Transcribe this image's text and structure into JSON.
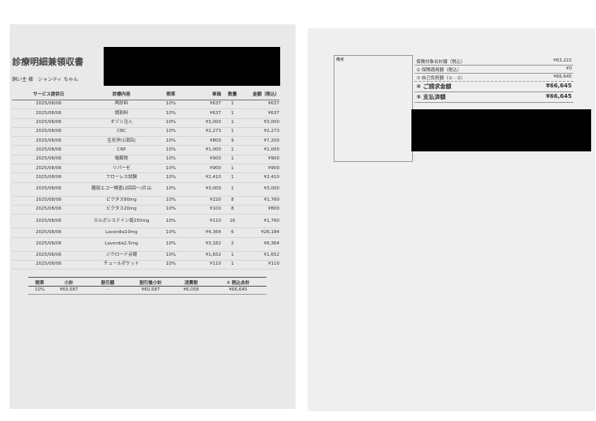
{
  "header": {
    "title": "診療明細兼領収書",
    "customer": "飼い主 様　シャンティ ちゃん"
  },
  "table": {
    "columns": [
      "サービス提供日",
      "診療内容",
      "税率",
      "単価",
      "数量",
      "金額（税込）"
    ],
    "rows": [
      [
        "2025/08/06",
        "再診料",
        "10%",
        "¥637",
        "1",
        "¥637"
      ],
      [
        "2025/08/06",
        "調剤料",
        "10%",
        "¥637",
        "1",
        "¥637"
      ],
      [
        "2025/08/06",
        "オゾン注入",
        "10%",
        "¥3,000",
        "1",
        "¥3,000"
      ],
      [
        "2025/08/06",
        "CBC",
        "10%",
        "¥2,273",
        "1",
        "¥2,273"
      ],
      [
        "2025/08/06",
        "生化学(1項目)",
        "10%",
        "¥800",
        "9",
        "¥7,200"
      ],
      [
        "2025/08/06",
        "CRP",
        "10%",
        "¥1,000",
        "1",
        "¥1,000"
      ],
      [
        "2025/08/06",
        "電解質",
        "10%",
        "¥900",
        "1",
        "¥900"
      ],
      [
        "2025/08/06",
        "リパーゼ",
        "10%",
        "¥900",
        "1",
        "¥900"
      ],
      [
        "2025/08/06",
        "フローレス試験",
        "10%",
        "¥2,410",
        "1",
        "¥2,410"
      ],
      [
        "2025/08/06",
        "腹部エコー検査(2回目～)片山",
        "10%",
        "¥3,000",
        "1",
        "¥3,000"
      ],
      [
        "2025/08/06",
        "ビクタス80mg",
        "10%",
        "¥220",
        "8",
        "¥1,760"
      ],
      [
        "2025/08/06",
        "ビクタス20mg",
        "10%",
        "¥100",
        "8",
        "¥800"
      ],
      [
        "2025/08/06",
        "カルボシステイン錠250mg",
        "10%",
        "¥110",
        "16",
        "¥1,760"
      ],
      [
        "2025/08/06",
        "Laverdia10mg",
        "10%",
        "¥4,364",
        "6",
        "¥26,184"
      ],
      [
        "2025/08/06",
        "Laverdia2.5mg",
        "10%",
        "¥3,182",
        "2",
        "¥6,364"
      ],
      [
        "2025/08/06",
        "ジクロード点眼",
        "10%",
        "¥1,652",
        "1",
        "¥1,652"
      ],
      [
        "2025/08/06",
        "チュールポケット",
        "10%",
        "¥110",
        "1",
        "¥110"
      ]
    ]
  },
  "summary": {
    "columns": [
      "税率",
      "小計",
      "割引額",
      "割引後小計",
      "消費税",
      "① 税込合計"
    ],
    "row": [
      "10%",
      "¥60,587",
      "-",
      "¥60,587",
      "¥6,058",
      "¥66,645"
    ]
  },
  "remarks": {
    "label": "備考"
  },
  "billing": {
    "items": [
      {
        "label": "保険対象合計額（税込）",
        "amount": "¥63,222"
      },
      {
        "label": "② 保険適用額（税込）",
        "amount": "¥0"
      },
      {
        "label": "③ 自己負担額（① - ②）",
        "amount": "¥66,645"
      },
      {
        "label": "④ ご請求金額",
        "amount": "¥66,645"
      },
      {
        "label": "⑤ 支払済額",
        "amount": "¥66,645"
      }
    ]
  }
}
